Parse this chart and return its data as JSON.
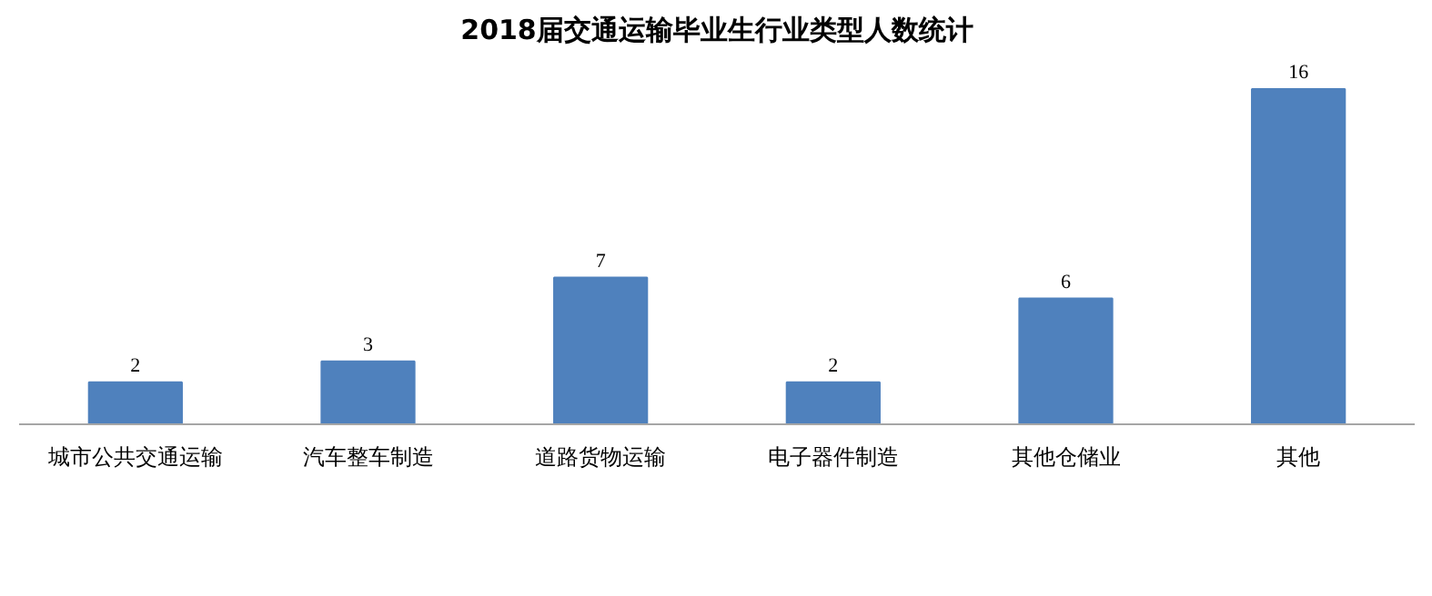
{
  "chart_data": {
    "type": "bar",
    "title": "2018届交通运输毕业生行业类型人数统计",
    "categories": [
      "城市公共交通运输",
      "汽车整车制造",
      "道路货物运输",
      "电子器件制造",
      "其他仓储业",
      "其他"
    ],
    "values": [
      2,
      3,
      7,
      2,
      6,
      16
    ],
    "color": "#4f81bd",
    "data_labels": true,
    "grid": false
  }
}
